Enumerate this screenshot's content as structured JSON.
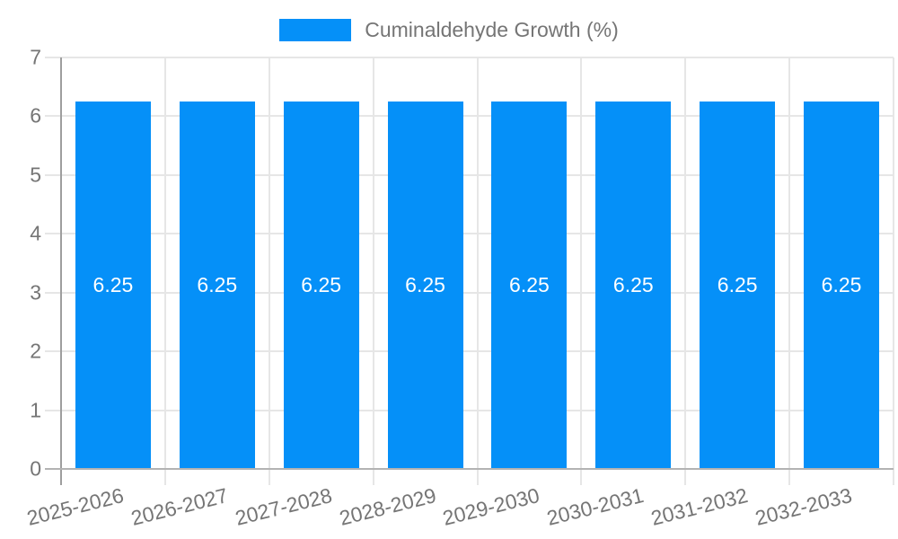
{
  "chart_data": {
    "type": "bar",
    "legend_label": "Cuminaldehyde Growth (%)",
    "legend_position": "top",
    "categories": [
      "2025-2026",
      "2026-2027",
      "2027-2028",
      "2028-2029",
      "2029-2030",
      "2030-2031",
      "2031-2032",
      "2032-2033"
    ],
    "series": [
      {
        "name": "Cuminaldehyde Growth (%)",
        "values": [
          6.25,
          6.25,
          6.25,
          6.25,
          6.25,
          6.25,
          6.25,
          6.25
        ]
      }
    ],
    "bar_label_decimals": 2,
    "ylim": [
      0,
      7
    ],
    "yticks": [
      0,
      1,
      2,
      3,
      4,
      5,
      6,
      7
    ],
    "grid": true,
    "colors": {
      "bar": "#0590F8",
      "text": "#757575",
      "grid": "#E6E6E6",
      "axis": "#9E9E9E",
      "baseline": "#B3B3B3",
      "bar_label": "#FFFFFF"
    }
  }
}
